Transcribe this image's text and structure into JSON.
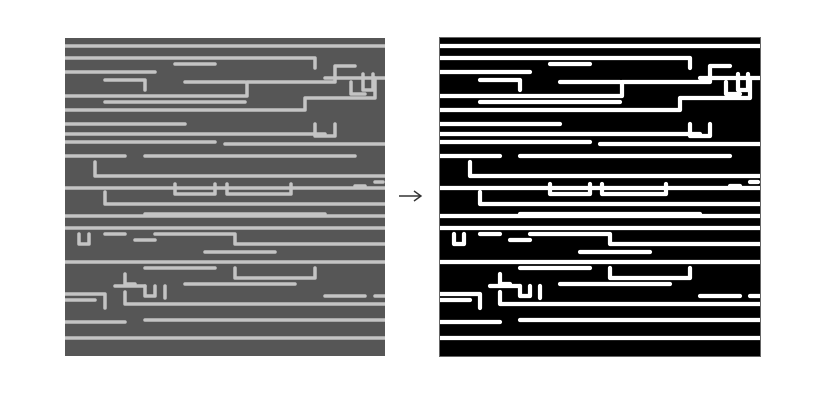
{
  "figure": {
    "panels": [
      {
        "role": "input",
        "style": "grayscale-sem-micrograph",
        "colors": {
          "bg": "#565656",
          "wire": "#c4c4c4"
        }
      },
      {
        "role": "output",
        "style": "binary-segmentation",
        "colors": {
          "bg": "#000000",
          "wire": "#ffffff"
        }
      }
    ],
    "arrow_icon": "right-arrow-icon",
    "arrow_color": "#333333"
  }
}
